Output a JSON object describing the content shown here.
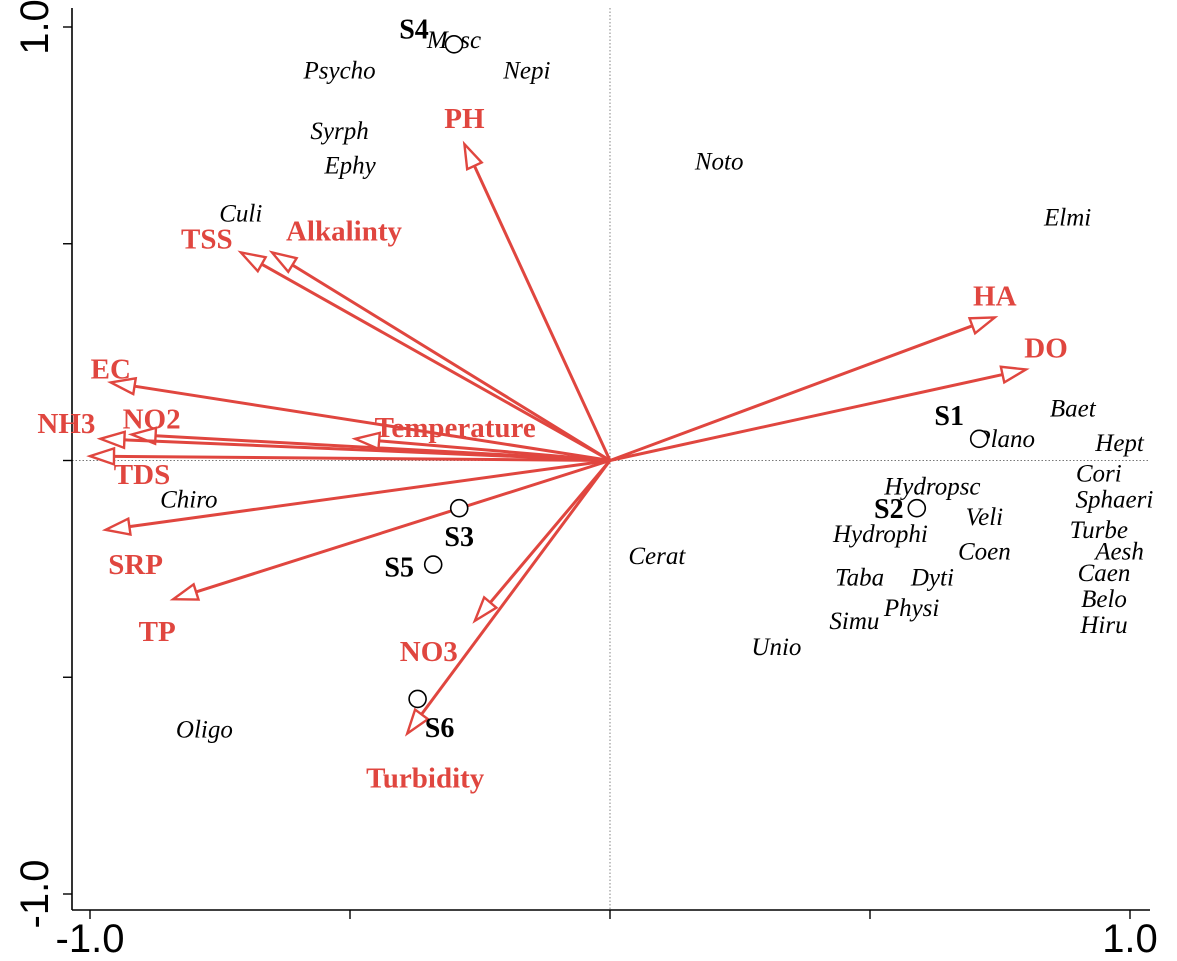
{
  "chart_data": {
    "type": "scatter",
    "subtype": "ordination-triplot",
    "xlim": [
      -1.0,
      1.0
    ],
    "ylim": [
      -1.0,
      1.0
    ],
    "x_tick_labels": [
      "-1.0",
      "1.0"
    ],
    "y_tick_labels": [
      "1.0",
      "-1.0"
    ],
    "zero_lines": true,
    "grid": false,
    "legend": "none",
    "colors": {
      "environment": "#e0463f",
      "species": "#000000",
      "sites": "#000000"
    },
    "environmental_variables": [
      {
        "name": "PH",
        "x": -0.28,
        "y": 0.73
      },
      {
        "name": "Alkalinty",
        "x": -0.65,
        "y": 0.48
      },
      {
        "name": "TSS",
        "x": -0.71,
        "y": 0.48
      },
      {
        "name": "HA",
        "x": 0.74,
        "y": 0.33
      },
      {
        "name": "DO",
        "x": 0.8,
        "y": 0.21
      },
      {
        "name": "EC",
        "x": -0.96,
        "y": 0.18
      },
      {
        "name": "NO2",
        "x": -0.92,
        "y": 0.06
      },
      {
        "name": "NH3",
        "x": -0.98,
        "y": 0.05
      },
      {
        "name": "TDS",
        "x": -1.0,
        "y": 0.01
      },
      {
        "name": "Temperature",
        "x": -0.49,
        "y": 0.05
      },
      {
        "name": "SRP",
        "x": -0.97,
        "y": -0.16
      },
      {
        "name": "TP",
        "x": -0.84,
        "y": -0.32
      },
      {
        "name": "NO3",
        "x": -0.26,
        "y": -0.37
      },
      {
        "name": "Turbidity",
        "x": -0.39,
        "y": -0.63
      }
    ],
    "species": [
      {
        "name": "Musc",
        "x": -0.3,
        "y": 0.97
      },
      {
        "name": "Psycho",
        "x": -0.52,
        "y": 0.9
      },
      {
        "name": "Nepi",
        "x": -0.16,
        "y": 0.9
      },
      {
        "name": "Syrph",
        "x": -0.52,
        "y": 0.76
      },
      {
        "name": "Ephy",
        "x": -0.5,
        "y": 0.68
      },
      {
        "name": "Noto",
        "x": 0.21,
        "y": 0.69
      },
      {
        "name": "Culi",
        "x": -0.71,
        "y": 0.57
      },
      {
        "name": "Elmi",
        "x": 0.88,
        "y": 0.56
      },
      {
        "name": "Baet",
        "x": 0.89,
        "y": 0.12
      },
      {
        "name": "Plano",
        "x": 0.76,
        "y": 0.05
      },
      {
        "name": "Hept",
        "x": 0.98,
        "y": 0.04
      },
      {
        "name": "Cori",
        "x": 0.94,
        "y": -0.03
      },
      {
        "name": "Hydropsc",
        "x": 0.62,
        "y": -0.06
      },
      {
        "name": "Sphaeri",
        "x": 0.97,
        "y": -0.09
      },
      {
        "name": "Veli",
        "x": 0.72,
        "y": -0.13
      },
      {
        "name": "Turbe",
        "x": 0.94,
        "y": -0.16
      },
      {
        "name": "Hydrophi",
        "x": 0.52,
        "y": -0.17
      },
      {
        "name": "Coen",
        "x": 0.72,
        "y": -0.21
      },
      {
        "name": "Aesh",
        "x": 0.98,
        "y": -0.21
      },
      {
        "name": "Cerat",
        "x": 0.09,
        "y": -0.22
      },
      {
        "name": "Taba",
        "x": 0.48,
        "y": -0.27
      },
      {
        "name": "Dyti",
        "x": 0.62,
        "y": -0.27
      },
      {
        "name": "Caen",
        "x": 0.95,
        "y": -0.26
      },
      {
        "name": "Physi",
        "x": 0.58,
        "y": -0.34
      },
      {
        "name": "Belo",
        "x": 0.95,
        "y": -0.32
      },
      {
        "name": "Simu",
        "x": 0.47,
        "y": -0.37
      },
      {
        "name": "Hiru",
        "x": 0.95,
        "y": -0.38
      },
      {
        "name": "Unio",
        "x": 0.32,
        "y": -0.43
      },
      {
        "name": "Chiro",
        "x": -0.81,
        "y": -0.09
      },
      {
        "name": "Oligo",
        "x": -0.78,
        "y": -0.62
      }
    ],
    "sites": [
      {
        "name": "S1",
        "x": 0.71,
        "y": 0.05
      },
      {
        "name": "S2",
        "x": 0.59,
        "y": -0.11
      },
      {
        "name": "S3",
        "x": -0.29,
        "y": -0.11
      },
      {
        "name": "S4",
        "x": -0.3,
        "y": 0.96
      },
      {
        "name": "S5",
        "x": -0.34,
        "y": -0.24
      },
      {
        "name": "S6",
        "x": -0.37,
        "y": -0.55
      }
    ]
  }
}
